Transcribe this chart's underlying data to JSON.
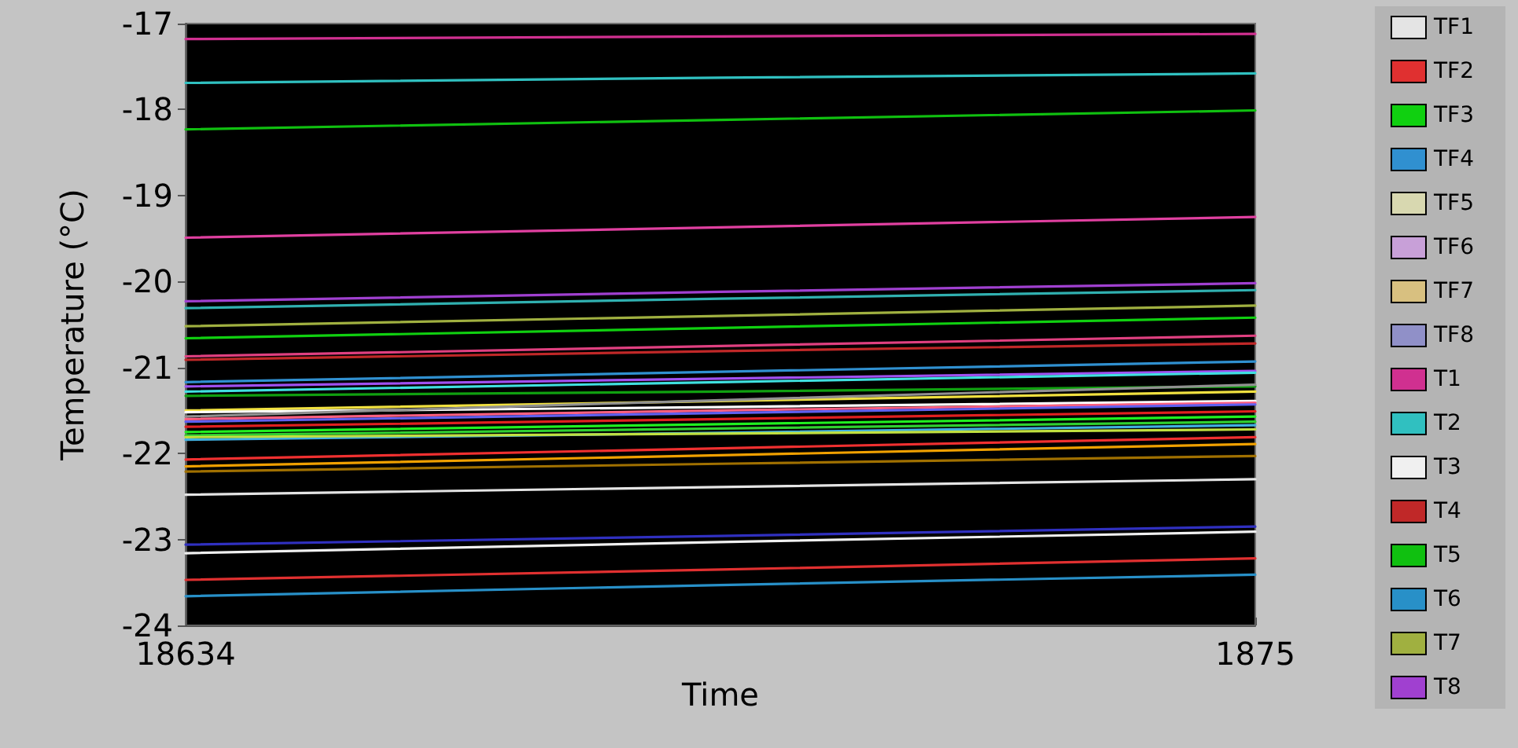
{
  "chart_data": {
    "type": "line",
    "xlabel": "Time",
    "ylabel": "Temperature (°C)",
    "categories": [
      "18634",
      null,
      "1875"
    ],
    "ylim": [
      -24,
      -17
    ],
    "yticks": [
      -24,
      -23,
      -22,
      -21,
      -20,
      -19,
      -18,
      -17
    ],
    "grid": false,
    "legend": "right",
    "marker": "none",
    "line_style": "solid",
    "series": [
      {
        "name": "TF1",
        "color": "#e4e4e4",
        "values": [
          -22.48,
          -22.39,
          -22.3
        ]
      },
      {
        "name": "TF2",
        "color": "#e03030",
        "values": [
          -23.47,
          -23.35,
          -23.22
        ]
      },
      {
        "name": "TF3",
        "color": "#10d010",
        "values": [
          -20.66,
          -20.54,
          -20.42
        ]
      },
      {
        "name": "TF4",
        "color": "#3090d0",
        "values": [
          -21.17,
          -21.05,
          -20.93
        ]
      },
      {
        "name": "TF5",
        "color": "#d8d8b0",
        "values": [
          null,
          null,
          null
        ]
      },
      {
        "name": "TF6",
        "color": "#c8a0d8",
        "values": [
          null,
          null,
          null
        ]
      },
      {
        "name": "TF7",
        "color": "#d8c080",
        "values": [
          null,
          null,
          null
        ]
      },
      {
        "name": "TF8",
        "color": "#9090c8",
        "values": [
          null,
          null,
          null
        ]
      },
      {
        "name": "T1",
        "color": "#d03090",
        "values": [
          -17.18,
          -17.15,
          -17.12
        ]
      },
      {
        "name": "T2",
        "color": "#30c0c0",
        "values": [
          -17.69,
          -17.63,
          -17.58
        ]
      },
      {
        "name": "T3",
        "color": "#f0f0f0",
        "values": [
          -23.16,
          -23.03,
          -22.91
        ]
      },
      {
        "name": "T4",
        "color": "#c02828",
        "values": [
          -20.91,
          -20.81,
          -20.72
        ]
      },
      {
        "name": "T5",
        "color": "#10c010",
        "values": [
          -18.23,
          -18.12,
          -18.01
        ]
      },
      {
        "name": "T6",
        "color": "#2890c8",
        "values": [
          -23.66,
          -23.53,
          -23.41
        ]
      },
      {
        "name": "T7",
        "color": "#a0b040",
        "values": [
          -20.52,
          -20.4,
          -20.28
        ]
      },
      {
        "name": "T8",
        "color": "#a040d0",
        "values": [
          -20.23,
          -20.12,
          -20.02
        ]
      },
      {
        "color": "#e040a0",
        "values": [
          -19.49,
          -19.37,
          -19.25
        ]
      },
      {
        "color": "#30b0b0",
        "values": [
          -20.31,
          -20.2,
          -20.1
        ]
      },
      {
        "color": "#e04080",
        "values": [
          -20.87,
          -20.75,
          -20.63
        ]
      },
      {
        "color": "#a050f0",
        "values": [
          -21.22,
          -21.13,
          -21.04
        ]
      },
      {
        "color": "#40e0e0",
        "values": [
          -21.28,
          -21.17,
          -21.06
        ]
      },
      {
        "color": "#10a010",
        "values": [
          -21.33,
          -21.28,
          -21.22
        ]
      },
      {
        "color": "#f0e040",
        "values": [
          -21.5,
          -21.39,
          -21.28
        ]
      },
      {
        "color": "#ffffff",
        "values": [
          -21.52,
          -21.46,
          -21.39
        ]
      },
      {
        "color": "#909090",
        "values": [
          -21.57,
          -21.38,
          -21.2
        ]
      },
      {
        "color": "#ff6080",
        "values": [
          -21.6,
          -21.5,
          -21.41
        ]
      },
      {
        "color": "#6060f0",
        "values": [
          -21.63,
          -21.53,
          -21.43
        ]
      },
      {
        "color": "#e02020",
        "values": [
          -21.69,
          -21.6,
          -21.51
        ]
      },
      {
        "color": "#20f020",
        "values": [
          -21.75,
          -21.66,
          -21.57
        ]
      },
      {
        "color": "#30d030",
        "values": [
          -21.79,
          -21.71,
          -21.63
        ]
      },
      {
        "color": "#40b0e0",
        "values": [
          -21.84,
          -21.76,
          -21.67
        ]
      },
      {
        "color": "#c0e040",
        "values": [
          -21.81,
          -21.77,
          -21.72
        ]
      },
      {
        "color": "#f03030",
        "values": [
          -22.07,
          -21.94,
          -21.81
        ]
      },
      {
        "color": "#f0a000",
        "values": [
          -22.15,
          -22.02,
          -21.89
        ]
      },
      {
        "color": "#a07000",
        "values": [
          -22.21,
          -22.12,
          -22.03
        ]
      },
      {
        "color": "#3030c0",
        "values": [
          -23.06,
          -22.96,
          -22.85
        ]
      }
    ]
  }
}
